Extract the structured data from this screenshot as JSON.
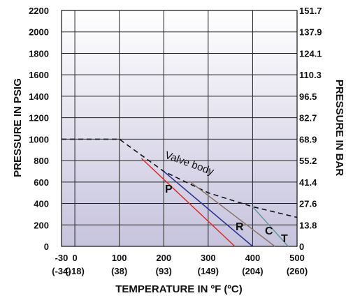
{
  "chart_data": {
    "type": "line",
    "xlabel": "TEMPERATURE IN ºF (ºC)",
    "ylabel_left": "PRESSURE IN PSIG",
    "ylabel_right": "PRESSURE IN BAR",
    "xlim": [
      -30,
      500
    ],
    "ylim": [
      0,
      2200
    ],
    "x_ticks": [
      {
        "value": -30,
        "f": "-30",
        "c": "(-34)"
      },
      {
        "value": 0,
        "f": "0",
        "c": "(-18)"
      },
      {
        "value": 100,
        "f": "100",
        "c": "(38)"
      },
      {
        "value": 200,
        "f": "200",
        "c": "(93)"
      },
      {
        "value": 300,
        "f": "300",
        "c": "(149)"
      },
      {
        "value": 400,
        "f": "400",
        "c": "(204)"
      },
      {
        "value": 500,
        "f": "500",
        "c": "(260)"
      }
    ],
    "y_ticks_left": [
      "0",
      "200",
      "400",
      "600",
      "800",
      "1000",
      "1200",
      "1400",
      "1600",
      "1800",
      "2000",
      "2200"
    ],
    "y_ticks_right": [
      "0",
      "13.8",
      "27.6",
      "41.4",
      "55.2",
      "68.9",
      "82.7",
      "96.5",
      "110.3",
      "124.1",
      "137.9",
      "151.7"
    ],
    "grid": true,
    "colors": {
      "plot_top": "#ffffff",
      "plot_bottom": "#c6c3dd",
      "grid": "#222222"
    },
    "series": [
      {
        "name": "Valve body",
        "style": "dashed",
        "color": "#111111",
        "x": [
          -30,
          100,
          200,
          300,
          400,
          500
        ],
        "y": [
          1000,
          1000,
          700,
          500,
          370,
          270
        ]
      },
      {
        "name": "P",
        "color": "#e0262a",
        "x": [
          150,
          360
        ],
        "y": [
          820,
          0
        ]
      },
      {
        "name": "R",
        "color": "#2a3190",
        "x": [
          200,
          400
        ],
        "y": [
          700,
          0
        ]
      },
      {
        "name": "C",
        "color": "#8b7468",
        "x": [
          260,
          450
        ],
        "y": [
          600,
          0
        ]
      },
      {
        "name": "T",
        "color": "#5f9a98",
        "x": [
          400,
          480
        ],
        "y": [
          370,
          0
        ]
      }
    ],
    "annotations": {
      "valve_body": "Valve body"
    }
  }
}
